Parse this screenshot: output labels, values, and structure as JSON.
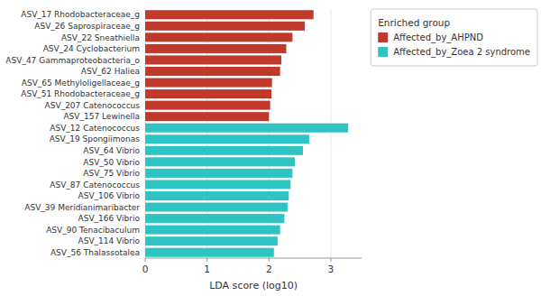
{
  "chart_data": {
    "type": "bar",
    "orientation": "horizontal",
    "categories": [
      "ASV_17 Rhodobacteraceae_g",
      "ASV_26 Saprospiraceae_g",
      "ASV_22 Sneathiella",
      "ASV_24 Cyclobacterium",
      "ASV_47 Gammaproteobacteria_o",
      "ASV_62 Haliea",
      "ASV_65 Methyloligellaceae_g",
      "ASV_51 Rhodobacteraceae_g",
      "ASV_207 Catenococcus",
      "ASV_157 Lewinella",
      "ASV_12 Catenococcus",
      "ASV_19 Spongiimonas",
      "ASV_64 Vibrio",
      "ASV_50 Vibrio",
      "ASV_75 Vibrio",
      "ASV_87 Catenococcus",
      "ASV_106 Vibrio",
      "ASV_39 Meridianimaribacter",
      "ASV_166 Vibrio",
      "ASV_90 Tenacibaculum",
      "ASV_114 Vibrio",
      "ASV_56 Thalassotalea"
    ],
    "series": [
      {
        "name": "Affected_by_AHPND",
        "color": "#c0392b",
        "values": [
          2.72,
          2.58,
          2.38,
          2.28,
          2.2,
          2.18,
          2.05,
          2.04,
          2.02,
          2.0,
          null,
          null,
          null,
          null,
          null,
          null,
          null,
          null,
          null,
          null,
          null,
          null
        ]
      },
      {
        "name": "Affected_by_Zoea 2 syndrome",
        "color": "#2ec4c4",
        "values": [
          null,
          null,
          null,
          null,
          null,
          null,
          null,
          null,
          null,
          null,
          3.28,
          2.65,
          2.55,
          2.42,
          2.38,
          2.35,
          2.32,
          2.3,
          2.25,
          2.18,
          2.14,
          2.08
        ]
      }
    ],
    "xlabel": "LDA score (log10)",
    "xlim": [
      0,
      3.5
    ],
    "xticks": [
      0,
      1,
      2,
      3
    ],
    "grid": true,
    "legend": "upper right",
    "legend_title": "Enriched group"
  }
}
